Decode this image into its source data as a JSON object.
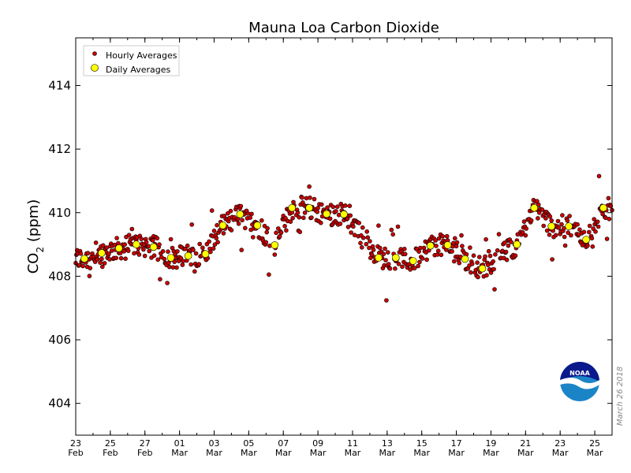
{
  "chart_data": {
    "type": "scatter",
    "title": "Mauna Loa Carbon Dioxide",
    "ylabel": "CO",
    "ylabel_sub": "2",
    "ylabel_unit": " (ppm)",
    "ylim": [
      403,
      415.5
    ],
    "yticks": [
      "404",
      "406",
      "408",
      "410",
      "412",
      "414"
    ],
    "xlim": [
      "2018-02-23",
      "2018-03-26"
    ],
    "xticks": [
      {
        "date": "2018-02-23",
        "day": "23",
        "mon": "Feb"
      },
      {
        "date": "2018-02-25",
        "day": "25",
        "mon": "Feb"
      },
      {
        "date": "2018-02-27",
        "day": "27",
        "mon": "Feb"
      },
      {
        "date": "2018-03-01",
        "day": "01",
        "mon": "Mar"
      },
      {
        "date": "2018-03-03",
        "day": "03",
        "mon": "Mar"
      },
      {
        "date": "2018-03-05",
        "day": "05",
        "mon": "Mar"
      },
      {
        "date": "2018-03-07",
        "day": "07",
        "mon": "Mar"
      },
      {
        "date": "2018-03-09",
        "day": "09",
        "mon": "Mar"
      },
      {
        "date": "2018-03-11",
        "day": "11",
        "mon": "Mar"
      },
      {
        "date": "2018-03-13",
        "day": "13",
        "mon": "Mar"
      },
      {
        "date": "2018-03-15",
        "day": "15",
        "mon": "Mar"
      },
      {
        "date": "2018-03-17",
        "day": "17",
        "mon": "Mar"
      },
      {
        "date": "2018-03-19",
        "day": "19",
        "mon": "Mar"
      },
      {
        "date": "2018-03-21",
        "day": "21",
        "mon": "Mar"
      },
      {
        "date": "2018-03-23",
        "day": "23",
        "mon": "Mar"
      },
      {
        "date": "2018-03-25",
        "day": "25",
        "mon": "Mar"
      }
    ],
    "grid": false,
    "legend_position": "top-left",
    "legend": [
      {
        "label": "Hourly Averages",
        "marker": "small-circle",
        "color": "#cc0000"
      },
      {
        "label": "Daily Averages",
        "marker": "large-circle",
        "color": "#ffff00"
      }
    ],
    "series": [
      {
        "name": "Daily Averages",
        "color": "#ffff00",
        "points": [
          {
            "date": "2018-02-23",
            "value": 408.55
          },
          {
            "date": "2018-02-24",
            "value": 408.73
          },
          {
            "date": "2018-02-25",
            "value": 408.88
          },
          {
            "date": "2018-02-26",
            "value": 409.0
          },
          {
            "date": "2018-02-27",
            "value": 408.92
          },
          {
            "date": "2018-02-28",
            "value": 408.58
          },
          {
            "date": "2018-03-01",
            "value": 408.64
          },
          {
            "date": "2018-03-02",
            "value": 408.7
          },
          {
            "date": "2018-03-03",
            "value": 409.6
          },
          {
            "date": "2018-03-04",
            "value": 409.95
          },
          {
            "date": "2018-03-05",
            "value": 409.6
          },
          {
            "date": "2018-03-06",
            "value": 408.98
          },
          {
            "date": "2018-03-07",
            "value": 410.15
          },
          {
            "date": "2018-03-08",
            "value": 410.15
          },
          {
            "date": "2018-03-09",
            "value": 409.96
          },
          {
            "date": "2018-03-10",
            "value": 409.95
          },
          {
            "date": "2018-03-12",
            "value": 408.58
          },
          {
            "date": "2018-03-13",
            "value": 408.58
          },
          {
            "date": "2018-03-14",
            "value": 408.48
          },
          {
            "date": "2018-03-15",
            "value": 408.96
          },
          {
            "date": "2018-03-16",
            "value": 408.98
          },
          {
            "date": "2018-03-17",
            "value": 408.54
          },
          {
            "date": "2018-03-18",
            "value": 408.24
          },
          {
            "date": "2018-03-20",
            "value": 409.0
          },
          {
            "date": "2018-03-21",
            "value": 410.15
          },
          {
            "date": "2018-03-22",
            "value": 409.57
          },
          {
            "date": "2018-03-23",
            "value": 409.57
          },
          {
            "date": "2018-03-24",
            "value": 409.15
          },
          {
            "date": "2018-03-25",
            "value": 410.15
          }
        ]
      },
      {
        "name": "Hourly Averages",
        "color": "#cc0000",
        "description": "hourly values scattered around the daily averages, range about 407.0 to 411.2 ppm",
        "min": 407.0,
        "max": 411.15
      }
    ],
    "signature": "March 26 2018",
    "logo_text": "NOAA"
  }
}
